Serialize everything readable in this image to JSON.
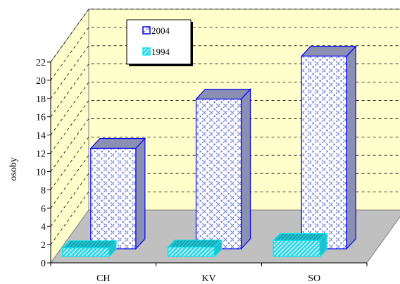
{
  "chart_data": {
    "type": "bar",
    "title": "",
    "xlabel": "",
    "ylabel": "osoby",
    "ylim": [
      0,
      22
    ],
    "yticks": [
      0,
      2,
      4,
      6,
      8,
      10,
      12,
      14,
      16,
      18,
      20,
      22
    ],
    "categories": [
      "CH",
      "KV",
      "SO"
    ],
    "series": [
      {
        "name": "2004",
        "values": [
          11,
          16.4,
          21.1
        ]
      },
      {
        "name": "1994",
        "values": [
          0.8,
          0.9,
          1.8
        ]
      }
    ],
    "grid": true,
    "legend": "top-left",
    "style": "3d-depth",
    "colors": {
      "wall_fill": "#ffffcc",
      "floor_fill": "#c0c0c0",
      "bar_2004_stroke": "#0000ff",
      "bar_2004_fill": "#ffffff",
      "bar_2004_pattern": "#6f7fd9",
      "bar_2004_side": "#8b90b3",
      "bar_1994_stroke": "#00e5ee",
      "bar_1994_fill": "#33d6e6",
      "bar_1994_side": "#22bfcf",
      "gridline": "#000000"
    }
  }
}
